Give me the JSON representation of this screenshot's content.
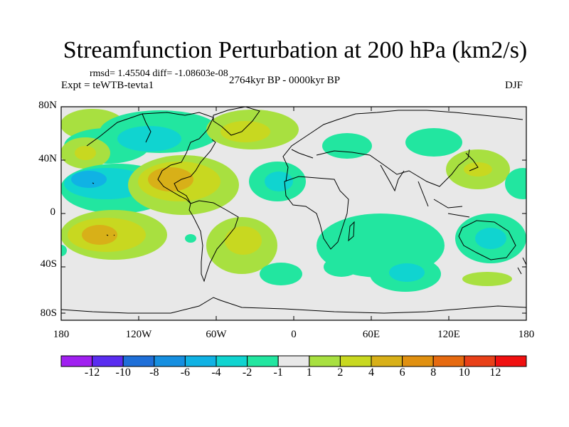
{
  "title": "Streamfunction Perturbation at 200 hPa (km2/s)",
  "stats": "rmsd= 1.45504 diff= -1.08603e-08",
  "experiment": "Expt = teWTB-tevta1",
  "period": "2764kyr BP - 0000kyr BP",
  "season": "DJF",
  "lat_labels": [
    "80N",
    "40N",
    "0",
    "40S",
    "80S"
  ],
  "lon_labels": [
    "180",
    "120W",
    "60W",
    "0",
    "60E",
    "120E",
    "180"
  ],
  "colorbar": {
    "labels": [
      "-12",
      "-10",
      "-8",
      "-6",
      "-4",
      "-2",
      "-1",
      "1",
      "2",
      "4",
      "6",
      "8",
      "10",
      "12"
    ],
    "colors": [
      "#a020f0",
      "#5a2df0",
      "#1f6fd8",
      "#168fe0",
      "#10b2e4",
      "#10d4d0",
      "#22e6a0",
      "#e8e8e8",
      "#a8e040",
      "#c8d820",
      "#d8b018",
      "#e09010",
      "#e66a10",
      "#e84018",
      "#f01010"
    ]
  }
}
